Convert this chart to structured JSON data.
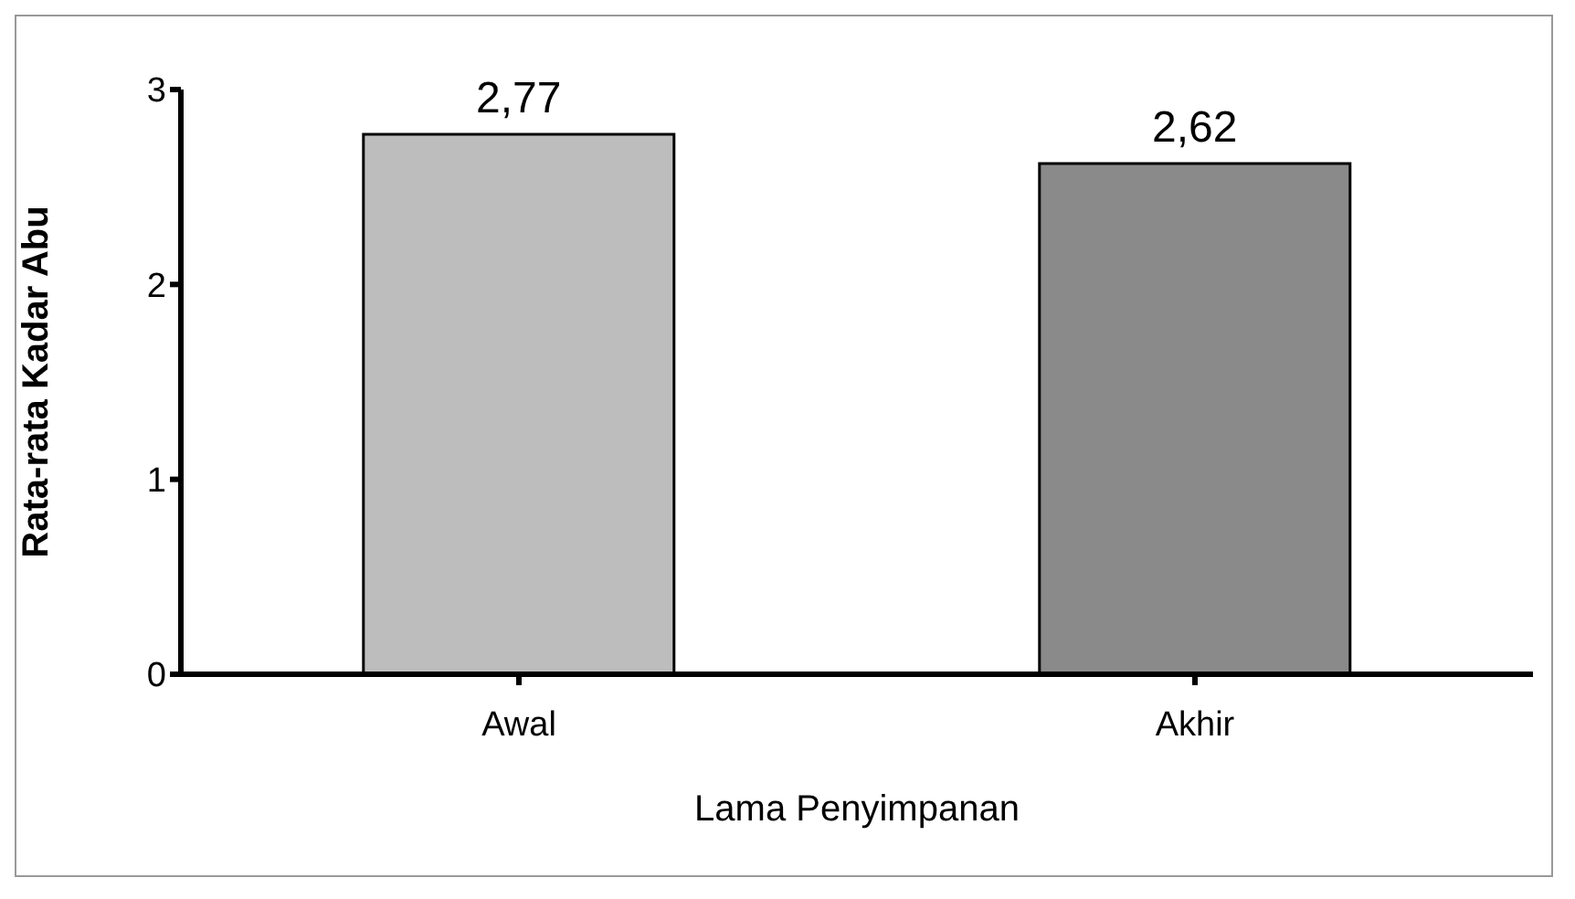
{
  "chart_data": {
    "type": "bar",
    "xlabel": "Lama Penyimpanan",
    "ylabel": "Rata-rata Kadar Abu",
    "categories": [
      "Awal",
      "Akhir"
    ],
    "values": [
      2.77,
      2.62
    ],
    "colors": [
      "#bdbdbd",
      "#8a8a8a"
    ],
    "value_labels": [
      "2,77",
      "2,62"
    ],
    "ylim": [
      0,
      3
    ],
    "yticks": [
      0,
      1,
      2,
      3
    ],
    "grid": false,
    "legend": false
  }
}
